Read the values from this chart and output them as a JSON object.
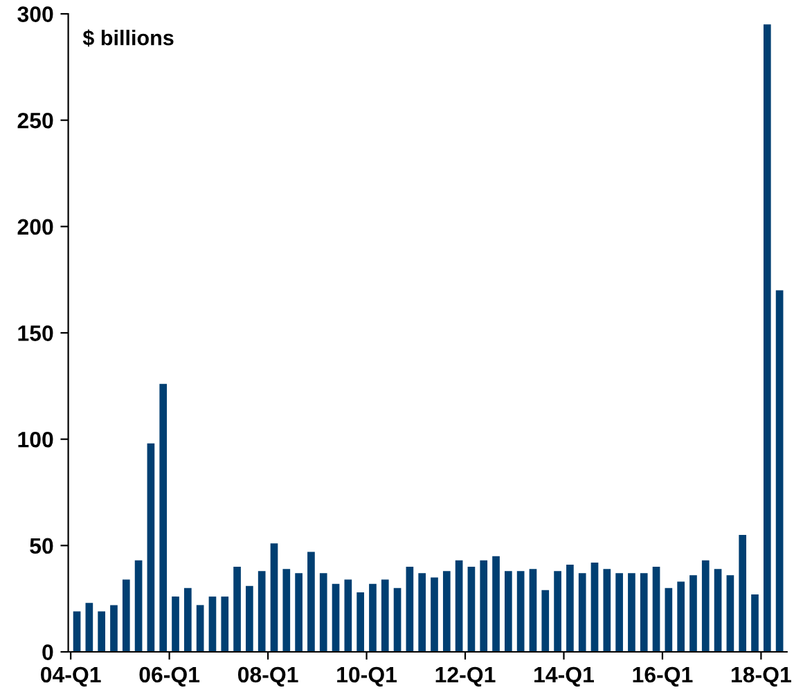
{
  "chart_data": {
    "type": "bar",
    "ylabel": "$ billions",
    "categories": [
      "04-Q1",
      null,
      null,
      null,
      null,
      null,
      null,
      null,
      "06-Q1",
      null,
      null,
      null,
      null,
      null,
      null,
      null,
      "08-Q1",
      null,
      null,
      null,
      null,
      null,
      null,
      null,
      "10-Q1",
      null,
      null,
      null,
      null,
      null,
      null,
      null,
      "12-Q1",
      null,
      null,
      null,
      null,
      null,
      null,
      null,
      "14-Q1",
      null,
      null,
      null,
      null,
      null,
      null,
      null,
      "16-Q1",
      null,
      null,
      null,
      null,
      null,
      null,
      null,
      "18-Q1",
      null
    ],
    "series": [
      {
        "color": "#003f72",
        "values": [
          19,
          23,
          19,
          22,
          34,
          43,
          98,
          126,
          26,
          30,
          22,
          26,
          26,
          40,
          31,
          38,
          51,
          39,
          37,
          47,
          37,
          32,
          34,
          28,
          32,
          34,
          30,
          40,
          37,
          35,
          38,
          43,
          40,
          43,
          45,
          38,
          38,
          39,
          29,
          38,
          41,
          37,
          42,
          39,
          37,
          37,
          37,
          40,
          30,
          33,
          36,
          43,
          39,
          36,
          55,
          27,
          295,
          170
        ]
      }
    ],
    "ylim": [
      0,
      300
    ],
    "yticks": [
      0,
      50,
      100,
      150,
      200,
      250,
      300
    ],
    "grid": false,
    "legend": false
  }
}
